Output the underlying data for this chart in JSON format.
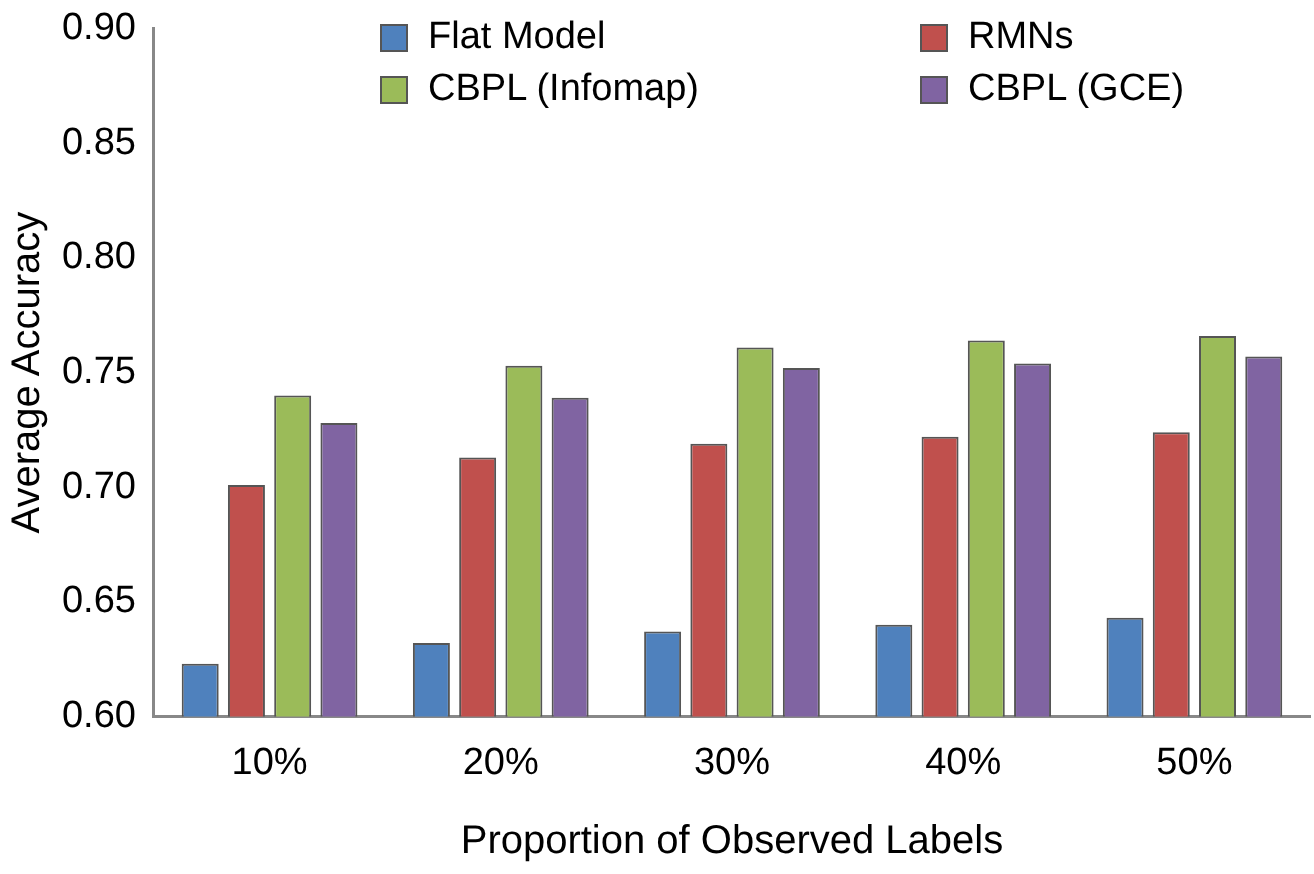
{
  "chart_data": {
    "type": "bar",
    "xlabel": "Proportion of Observed Labels",
    "ylabel": "Average Accuracy",
    "categories": [
      "10%",
      "20%",
      "30%",
      "40%",
      "50%"
    ],
    "series": [
      {
        "name": "Flat Model",
        "color": "#4f81bd",
        "values": [
          0.623,
          0.632,
          0.637,
          0.64,
          0.643
        ]
      },
      {
        "name": "RMNs",
        "color": "#c0504d",
        "values": [
          0.701,
          0.713,
          0.719,
          0.722,
          0.724
        ]
      },
      {
        "name": "CBPL (Infomap)",
        "color": "#9bbb59",
        "values": [
          0.74,
          0.753,
          0.761,
          0.764,
          0.766
        ]
      },
      {
        "name": "CBPL (GCE)",
        "color": "#8064a2",
        "values": [
          0.728,
          0.739,
          0.752,
          0.754,
          0.757
        ]
      }
    ],
    "ylim": [
      0.6,
      0.9
    ],
    "yticks": [
      {
        "value": 0.6,
        "label": "0.60"
      },
      {
        "value": 0.65,
        "label": "0.65"
      },
      {
        "value": 0.7,
        "label": "0.70"
      },
      {
        "value": 0.75,
        "label": "0.75"
      },
      {
        "value": 0.8,
        "label": "0.80"
      },
      {
        "value": 0.85,
        "label": "0.85"
      },
      {
        "value": 0.9,
        "label": "0.90"
      }
    ],
    "grid": false,
    "legend": "top"
  }
}
